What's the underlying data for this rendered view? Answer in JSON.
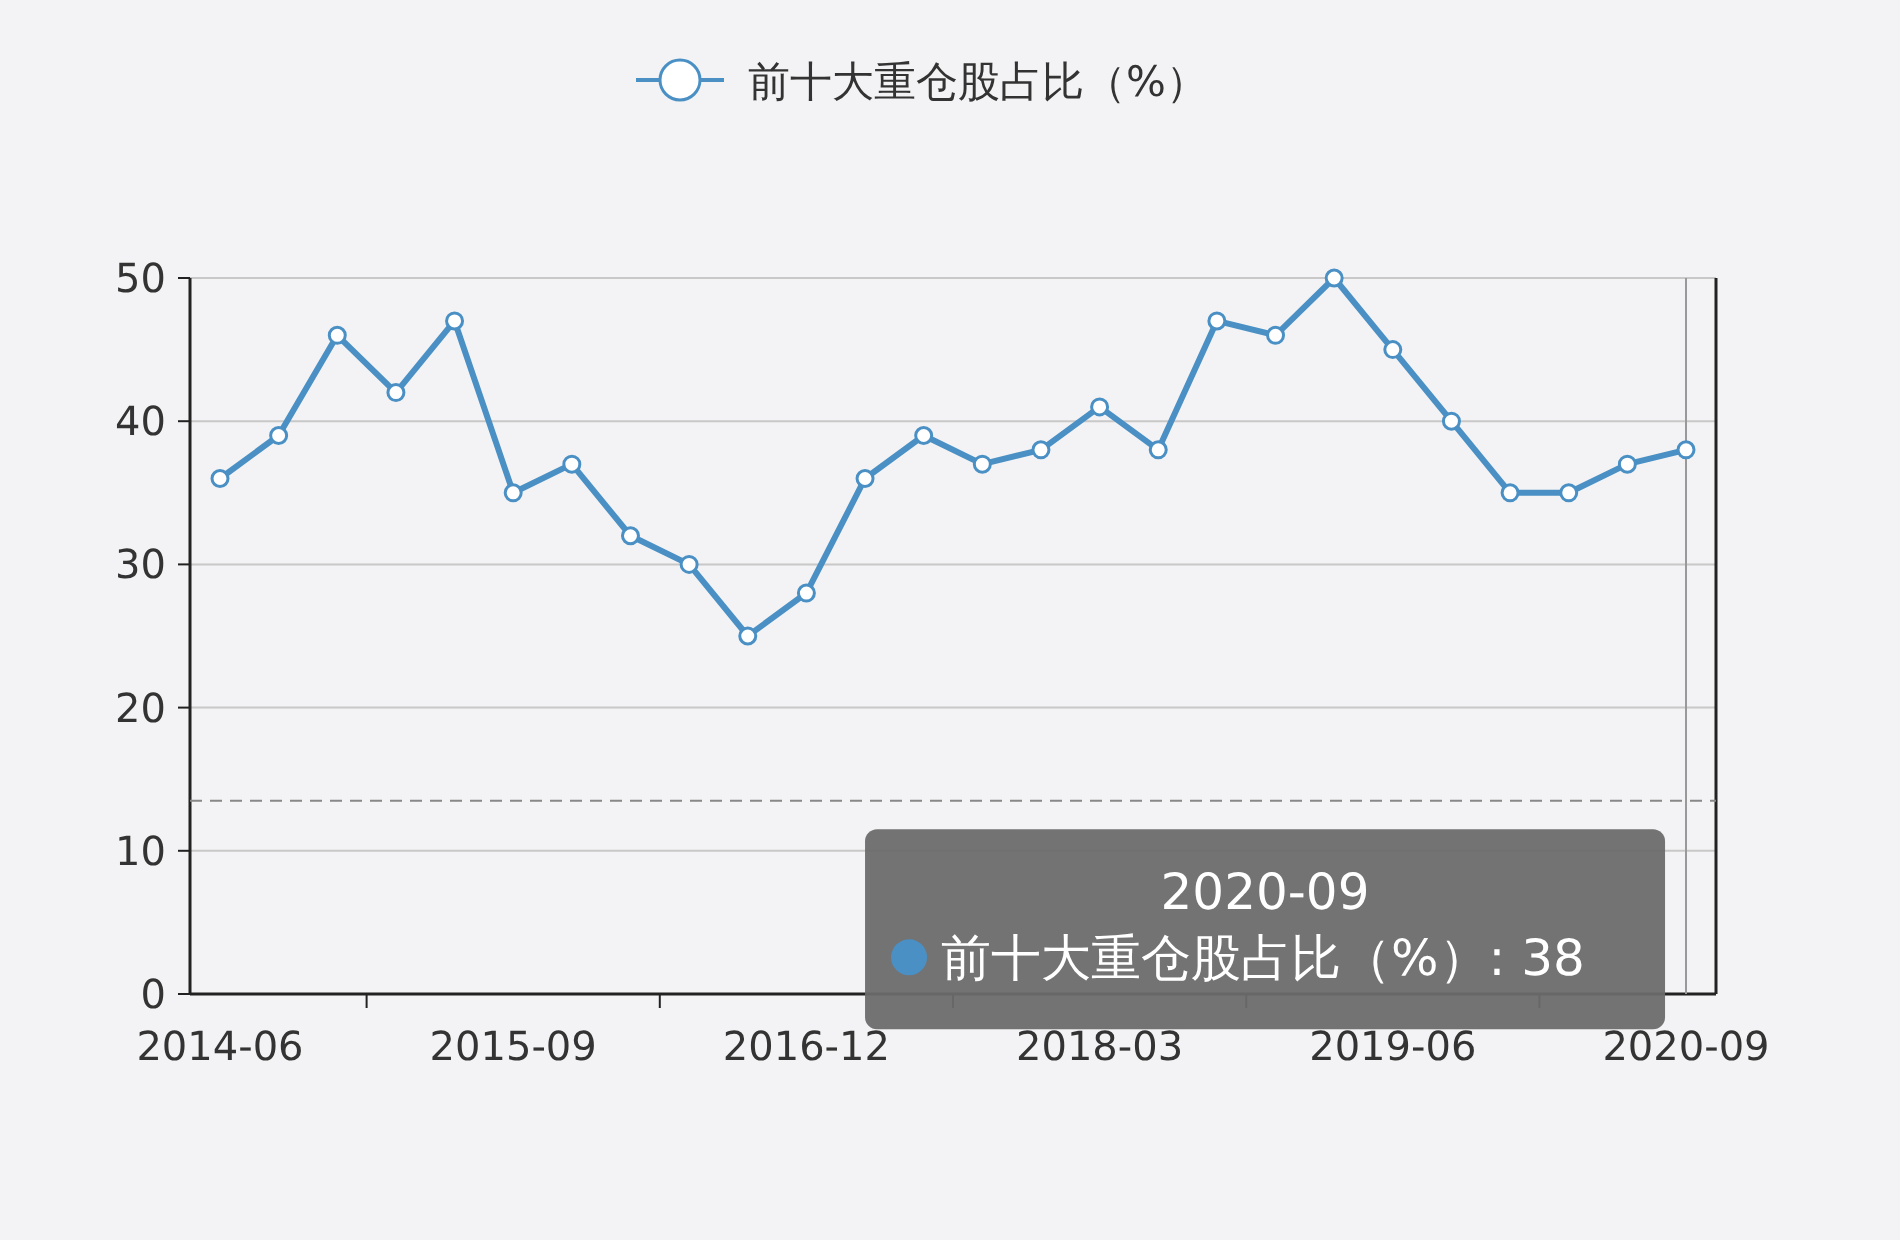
{
  "chart_data": {
    "type": "line",
    "categories": [
      "2014-06",
      null,
      null,
      null,
      null,
      "2015-09",
      null,
      null,
      null,
      null,
      "2016-12",
      null,
      null,
      null,
      null,
      "2018-03",
      null,
      null,
      null,
      null,
      "2019-06",
      null,
      null,
      null,
      null,
      "2020-09"
    ],
    "series": [
      {
        "name": "前十大重仓股占比（%）",
        "color": "#4a90c4",
        "values": [
          36,
          39,
          46,
          42,
          47,
          35,
          37,
          32,
          30,
          25,
          28,
          36,
          39,
          37,
          38,
          41,
          38,
          47,
          46,
          50,
          45,
          40,
          35,
          35,
          37,
          38
        ]
      }
    ],
    "ylim": [
      0,
      50
    ],
    "yticks": [
      0,
      10,
      20,
      30,
      40,
      50
    ],
    "grid": "y",
    "legend": "top",
    "marker": "circle",
    "line_style": "solid",
    "ref_lines": [
      {
        "axis": "y",
        "value": 13.5,
        "color": "#888888",
        "line_style": "dashed"
      },
      {
        "axis": "x",
        "value": "2020-09",
        "color": "#999999",
        "line_style": "solid"
      }
    ],
    "annotations": [
      "2020-09",
      "前十大重仓股占比（%）: 38"
    ]
  }
}
